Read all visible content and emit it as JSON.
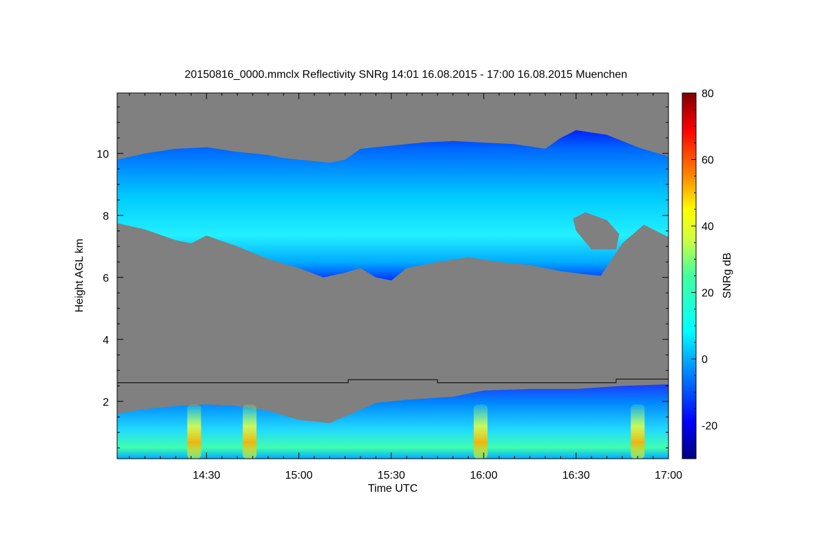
{
  "chart_data": {
    "type": "heatmap",
    "title": "20150816_0000.mmclx Reflectivity SNRg   14:01 16.08.2015 - 17:00 16.08.2015 Muenchen",
    "xlabel": "Time UTC",
    "ylabel": "Height AGL km",
    "x_ticks": [
      "14:30",
      "15:00",
      "15:30",
      "16:00",
      "16:30",
      "17:00"
    ],
    "x_tick_minutes": [
      870,
      900,
      930,
      960,
      990,
      1020
    ],
    "xlim_minutes": [
      841,
      1020
    ],
    "y_ticks": [
      "2",
      "4",
      "6",
      "8",
      "10"
    ],
    "y_tick_values": [
      2,
      4,
      6,
      8,
      10
    ],
    "ylim_km": [
      0.15,
      11.95
    ],
    "colorbar": {
      "label": "SNRg dB",
      "ticks": [
        "-20",
        "0",
        "20",
        "40",
        "60",
        "80"
      ],
      "tick_values": [
        -20,
        0,
        20,
        40,
        60,
        80
      ],
      "range": [
        -30,
        80
      ]
    },
    "background_color": "#808080",
    "upper_cloud_layer": {
      "top_km": [
        [
          841,
          9.8
        ],
        [
          850,
          10.0
        ],
        [
          860,
          10.15
        ],
        [
          870,
          10.2
        ],
        [
          880,
          10.05
        ],
        [
          890,
          9.95
        ],
        [
          895,
          9.85
        ],
        [
          910,
          9.7
        ],
        [
          915,
          9.8
        ],
        [
          920,
          10.15
        ],
        [
          930,
          10.25
        ],
        [
          940,
          10.35
        ],
        [
          950,
          10.4
        ],
        [
          960,
          10.35
        ],
        [
          970,
          10.3
        ],
        [
          980,
          10.15
        ],
        [
          985,
          10.5
        ],
        [
          990,
          10.75
        ],
        [
          1000,
          10.6
        ],
        [
          1010,
          10.2
        ],
        [
          1020,
          9.9
        ]
      ],
      "base_km": [
        [
          841,
          7.75
        ],
        [
          850,
          7.55
        ],
        [
          860,
          7.2
        ],
        [
          865,
          7.1
        ],
        [
          870,
          7.35
        ],
        [
          880,
          7.0
        ],
        [
          890,
          6.6
        ],
        [
          900,
          6.3
        ],
        [
          908,
          6.0
        ],
        [
          915,
          6.15
        ],
        [
          920,
          6.3
        ],
        [
          925,
          6.0
        ],
        [
          930,
          5.9
        ],
        [
          935,
          6.3
        ],
        [
          945,
          6.5
        ],
        [
          955,
          6.65
        ],
        [
          965,
          6.5
        ],
        [
          975,
          6.4
        ],
        [
          985,
          6.2
        ],
        [
          993,
          6.1
        ],
        [
          998,
          6.05
        ],
        [
          1005,
          7.1
        ],
        [
          1012,
          7.7
        ],
        [
          1020,
          7.3
        ]
      ]
    },
    "lower_cloud_layer": {
      "top_km": [
        [
          841,
          1.6
        ],
        [
          850,
          1.75
        ],
        [
          860,
          1.85
        ],
        [
          870,
          1.9
        ],
        [
          880,
          1.85
        ],
        [
          890,
          1.7
        ],
        [
          900,
          1.4
        ],
        [
          910,
          1.3
        ],
        [
          917,
          1.6
        ],
        [
          925,
          1.95
        ],
        [
          935,
          2.05
        ],
        [
          950,
          2.15
        ],
        [
          960,
          2.35
        ],
        [
          975,
          2.4
        ],
        [
          990,
          2.4
        ],
        [
          1005,
          2.5
        ],
        [
          1020,
          2.55
        ]
      ],
      "base_km": 0.15
    },
    "convective_cores": [
      {
        "time_min": 866,
        "max_snr_db": 40
      },
      {
        "time_min": 884,
        "max_snr_db": 45
      },
      {
        "time_min": 959,
        "max_snr_db": 50
      },
      {
        "time_min": 1010,
        "max_snr_db": 40
      }
    ],
    "mode_boundary_km": [
      [
        841,
        2.6
      ],
      [
        916,
        2.6
      ],
      [
        916,
        2.7
      ],
      [
        945,
        2.7
      ],
      [
        945,
        2.6
      ],
      [
        1003,
        2.6
      ],
      [
        1003,
        2.72
      ],
      [
        1020,
        2.72
      ]
    ]
  }
}
